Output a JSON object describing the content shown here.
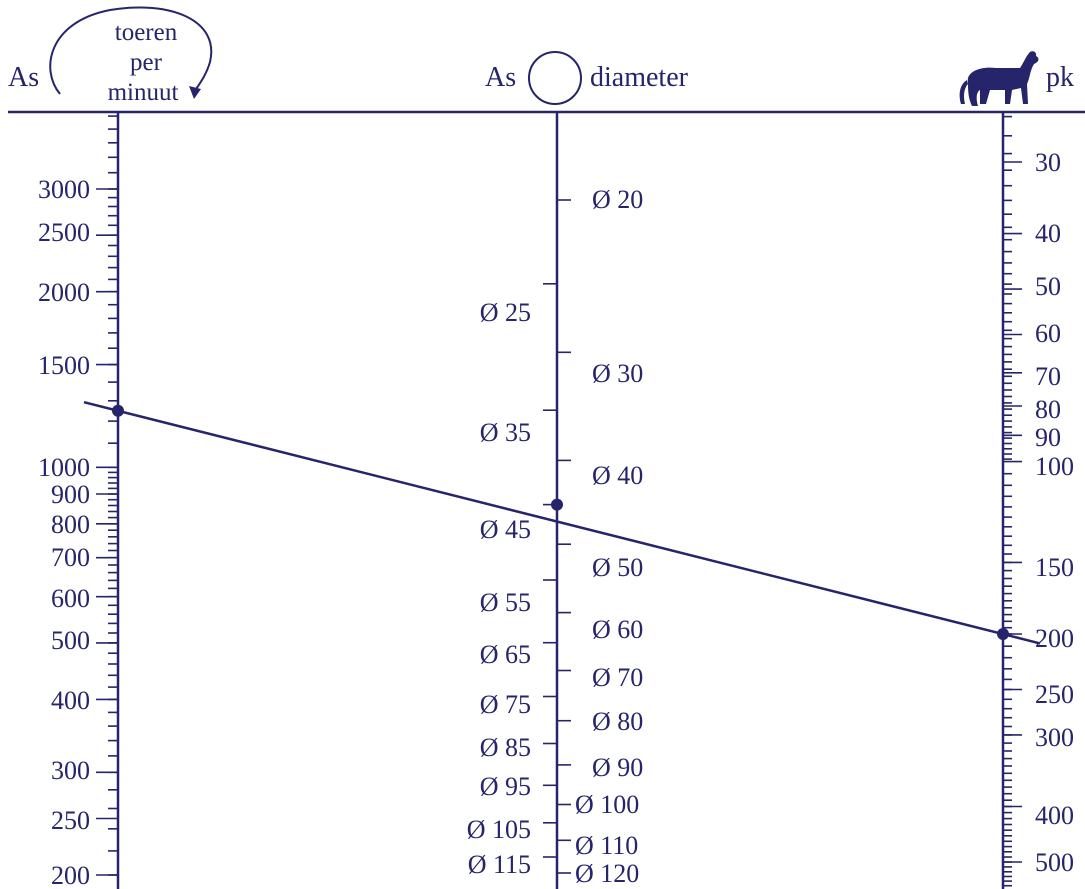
{
  "header": {
    "left_as": "As",
    "rpm_line1": "toeren",
    "rpm_line2": "per",
    "rpm_line3": "minuut",
    "mid_as": "As",
    "mid_diameter": "diameter",
    "right_pk": "pk"
  },
  "colors": {
    "ink": "#26246a",
    "background": "#ffffff"
  },
  "icons": {
    "rotation": "circular-arrow-icon",
    "diameter": "circle-icon",
    "power": "horse-icon"
  },
  "chart_data": {
    "type": "nomogram",
    "axes": [
      {
        "name": "toeren per minuut",
        "scale": "log",
        "range": [
          200,
          4000
        ],
        "labels": [
          "3000",
          "2500",
          "2000",
          "1500",
          "1000",
          "900",
          "800",
          "700",
          "600",
          "500",
          "400",
          "300",
          "250",
          "200"
        ]
      },
      {
        "name": "diameter",
        "scale": "log",
        "range": [
          15,
          125
        ],
        "labels_left": [
          "Ø 25",
          "Ø 35",
          "Ø 45",
          "Ø 55",
          "Ø 65",
          "Ø 75",
          "Ø 85",
          "Ø 95",
          "Ø 105",
          "Ø 115"
        ],
        "labels_right": [
          "Ø 20",
          "Ø 30",
          "Ø 40",
          "Ø 50",
          "Ø 60",
          "Ø 70",
          "Ø 80",
          "Ø 90",
          "Ø 100",
          "Ø 110",
          "Ø 120"
        ]
      },
      {
        "name": "pk",
        "scale": "log",
        "range": [
          25,
          550
        ],
        "labels": [
          "30",
          "40",
          "50",
          "60",
          "70",
          "80",
          "90",
          "100",
          "150",
          "200",
          "250",
          "300",
          "400",
          "500"
        ]
      }
    ],
    "isopleth": {
      "rpm": 1250,
      "diameter": 45,
      "pk": 200
    }
  }
}
